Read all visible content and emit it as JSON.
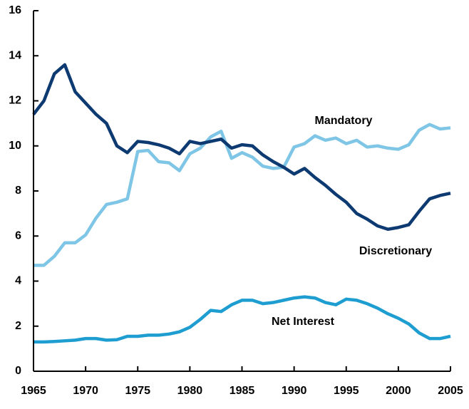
{
  "chart_data": {
    "type": "line",
    "x": [
      1965,
      1966,
      1967,
      1968,
      1969,
      1970,
      1971,
      1972,
      1973,
      1974,
      1975,
      1976,
      1977,
      1978,
      1979,
      1980,
      1981,
      1982,
      1983,
      1984,
      1985,
      1986,
      1987,
      1988,
      1989,
      1990,
      1991,
      1992,
      1993,
      1994,
      1995,
      1996,
      1997,
      1998,
      1999,
      2000,
      2001,
      2002,
      2003,
      2004,
      2005
    ],
    "series": [
      {
        "name": "Mandatory",
        "color": "#7fc6e6",
        "values": [
          4.7,
          4.7,
          5.1,
          5.7,
          5.7,
          6.05,
          6.8,
          7.4,
          7.5,
          7.65,
          9.75,
          9.8,
          9.3,
          9.25,
          8.9,
          9.65,
          9.9,
          10.4,
          10.65,
          9.45,
          9.7,
          9.5,
          9.1,
          9.0,
          9.05,
          9.95,
          10.1,
          10.45,
          10.25,
          10.35,
          10.1,
          10.25,
          9.95,
          10.0,
          9.9,
          9.85,
          10.05,
          10.7,
          10.95,
          10.75,
          10.8
        ]
      },
      {
        "name": "Discretionary",
        "color": "#0e3a72",
        "values": [
          11.4,
          12.0,
          13.2,
          13.6,
          12.4,
          11.9,
          11.4,
          11.0,
          10.0,
          9.7,
          10.2,
          10.15,
          10.05,
          9.9,
          9.65,
          10.2,
          10.1,
          10.2,
          10.3,
          9.9,
          10.05,
          10.0,
          9.6,
          9.3,
          9.05,
          8.75,
          9.0,
          8.6,
          8.25,
          7.85,
          7.5,
          7.0,
          6.75,
          6.45,
          6.3,
          6.38,
          6.5,
          7.1,
          7.65,
          7.8,
          7.9
        ]
      },
      {
        "name": "Net Interest",
        "color": "#1e9dd0",
        "values": [
          1.3,
          1.3,
          1.32,
          1.35,
          1.38,
          1.45,
          1.45,
          1.38,
          1.4,
          1.55,
          1.55,
          1.6,
          1.6,
          1.65,
          1.75,
          1.95,
          2.3,
          2.7,
          2.65,
          2.95,
          3.15,
          3.15,
          3.0,
          3.05,
          3.15,
          3.25,
          3.3,
          3.25,
          3.05,
          2.95,
          3.2,
          3.15,
          3.0,
          2.8,
          2.55,
          2.35,
          2.1,
          1.7,
          1.45,
          1.45,
          1.55
        ]
      }
    ],
    "xlim": [
      1965,
      2005
    ],
    "xticks": [
      1965,
      1970,
      1975,
      1980,
      1985,
      1990,
      1995,
      2000,
      2005
    ],
    "ylim": [
      0,
      16
    ],
    "yticks": [
      0,
      2,
      4,
      6,
      8,
      10,
      12,
      14,
      16
    ]
  }
}
